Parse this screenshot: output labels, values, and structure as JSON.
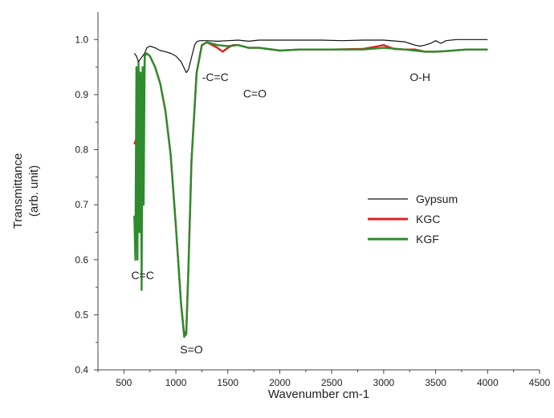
{
  "chart_data": {
    "type": "line",
    "xlabel": "Wavenumber cm-1",
    "ylabel": "Transmittance",
    "ylabel2": "(arb. unit)",
    "xlim": [
      250,
      4500
    ],
    "ylim": [
      0.4,
      1.05
    ],
    "xticks": [
      500,
      1000,
      1500,
      2000,
      2500,
      3000,
      3500,
      4000,
      4500
    ],
    "yticks": [
      0.4,
      0.5,
      0.6,
      0.7,
      0.8,
      0.9,
      1.0
    ],
    "xtick_labels": [
      "500",
      "1000",
      "1500",
      "2000",
      "2500",
      "3000",
      "3500",
      "4000",
      "4500"
    ],
    "ytick_labels": [
      "0.4",
      "0.5",
      "0.6",
      "0.7",
      "0.8",
      "0.9",
      "1.0"
    ],
    "grid": false,
    "legend_position": "middle-right",
    "annotations": [
      {
        "text": "-C=C",
        "x": 1380,
        "y": 0.925
      },
      {
        "text": "C=O",
        "x": 1760,
        "y": 0.895
      },
      {
        "text": "O-H",
        "x": 3350,
        "y": 0.925
      },
      {
        "text": "C=C",
        "x": 680,
        "y": 0.565
      },
      {
        "text": "S=O",
        "x": 1150,
        "y": 0.43
      }
    ],
    "series": [
      {
        "name": "Gypsum",
        "color": "#111111",
        "x": [
          600,
          620,
          640,
          660,
          680,
          700,
          720,
          750,
          800,
          850,
          900,
          950,
          1000,
          1050,
          1080,
          1100,
          1120,
          1140,
          1160,
          1180,
          1200,
          1230,
          1300,
          1400,
          1500,
          1600,
          1700,
          1800,
          2000,
          2200,
          2400,
          2600,
          2800,
          3000,
          3200,
          3300,
          3350,
          3400,
          3450,
          3500,
          3550,
          3600,
          3700,
          4000
        ],
        "y": [
          0.975,
          0.97,
          0.96,
          0.965,
          0.97,
          0.975,
          0.985,
          0.988,
          0.985,
          0.98,
          0.978,
          0.975,
          0.97,
          0.96,
          0.948,
          0.94,
          0.945,
          0.96,
          0.975,
          0.99,
          0.996,
          0.998,
          0.998,
          0.997,
          0.998,
          0.999,
          0.997,
          0.999,
          0.999,
          0.999,
          0.999,
          0.998,
          0.999,
          0.999,
          0.996,
          0.99,
          0.988,
          0.99,
          0.993,
          0.998,
          0.993,
          0.998,
          1.0,
          1.0
        ]
      },
      {
        "name": "KGC",
        "color": "#dd2222",
        "x": [
          600,
          620,
          640,
          655,
          670,
          685,
          700,
          720,
          750,
          800,
          850,
          900,
          950,
          1000,
          1050,
          1080,
          1100,
          1120,
          1150,
          1200,
          1250,
          1300,
          1350,
          1400,
          1450,
          1500,
          1550,
          1600,
          1700,
          1800,
          2000,
          2200,
          2500,
          2800,
          2950,
          3000,
          3100,
          3200,
          3300,
          3400,
          3500,
          3600,
          3800,
          4000
        ],
        "y": [
          0.81,
          0.82,
          0.95,
          0.8,
          0.92,
          0.75,
          0.97,
          0.975,
          0.97,
          0.95,
          0.92,
          0.87,
          0.79,
          0.66,
          0.52,
          0.465,
          0.47,
          0.58,
          0.78,
          0.94,
          0.99,
          0.995,
          0.99,
          0.985,
          0.978,
          0.985,
          0.99,
          0.99,
          0.985,
          0.985,
          0.98,
          0.982,
          0.982,
          0.983,
          0.988,
          0.99,
          0.983,
          0.982,
          0.982,
          0.978,
          0.978,
          0.979,
          0.982,
          0.982
        ]
      },
      {
        "name": "KGF",
        "color": "#2e8b2e",
        "x": [
          600,
          610,
          620,
          630,
          640,
          650,
          660,
          670,
          680,
          690,
          700,
          720,
          750,
          800,
          850,
          900,
          950,
          1000,
          1050,
          1080,
          1100,
          1120,
          1150,
          1200,
          1250,
          1300,
          1400,
          1500,
          1600,
          1700,
          1800,
          2000,
          2200,
          2500,
          2800,
          3000,
          3200,
          3400,
          3500,
          3600,
          3800,
          4000
        ],
        "y": [
          0.68,
          0.6,
          0.95,
          0.6,
          0.96,
          0.65,
          0.94,
          0.545,
          0.95,
          0.7,
          0.97,
          0.975,
          0.97,
          0.95,
          0.92,
          0.87,
          0.79,
          0.66,
          0.52,
          0.46,
          0.465,
          0.58,
          0.78,
          0.94,
          0.99,
          0.995,
          0.99,
          0.988,
          0.99,
          0.985,
          0.985,
          0.98,
          0.982,
          0.982,
          0.982,
          0.985,
          0.982,
          0.978,
          0.978,
          0.979,
          0.982,
          0.982
        ]
      }
    ]
  }
}
